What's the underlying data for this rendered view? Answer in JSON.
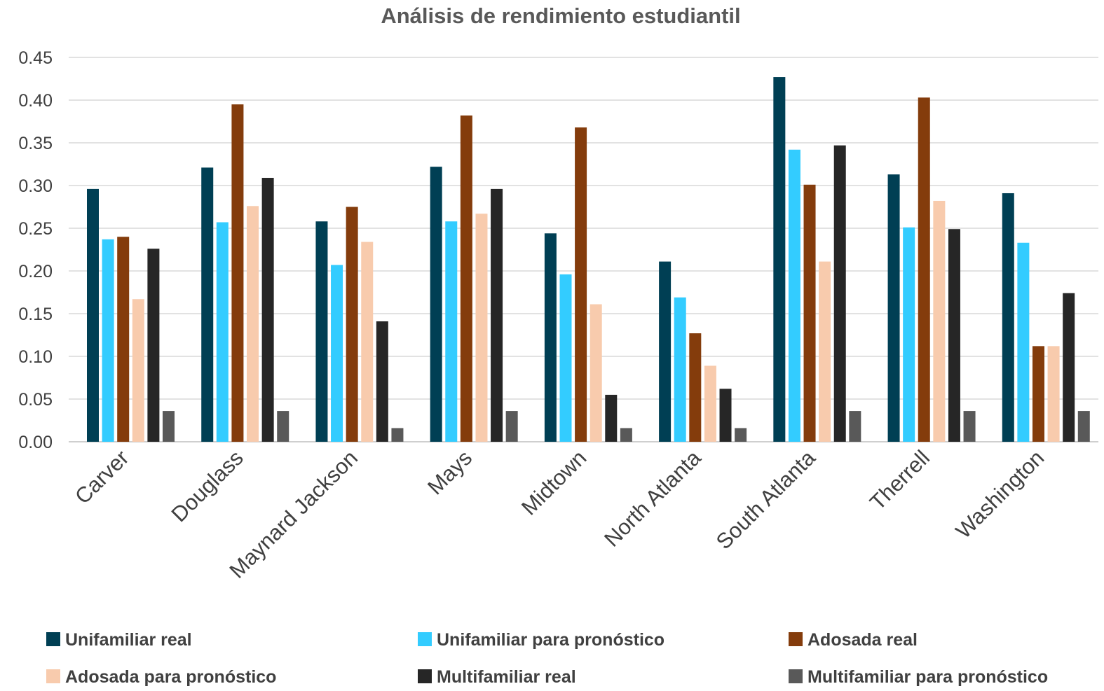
{
  "chart_data": {
    "type": "bar",
    "title": "Análisis de rendimiento estudiantil",
    "xlabel": "",
    "ylabel": "",
    "ylim": [
      0,
      0.45
    ],
    "yticks": [
      "0.00",
      "0.05",
      "0.10",
      "0.15",
      "0.20",
      "0.25",
      "0.30",
      "0.35",
      "0.40",
      "0.45"
    ],
    "grid": true,
    "legend_position": "bottom",
    "categories": [
      "Carver",
      "Douglass",
      "Maynard Jackson",
      "Mays",
      "Midtown",
      "North Atlanta",
      "South Atlanta",
      "Therrell",
      "Washington"
    ],
    "series": [
      {
        "name": "Unifamiliar real",
        "color": "#003F54",
        "values": [
          0.296,
          0.321,
          0.258,
          0.322,
          0.244,
          0.211,
          0.427,
          0.313,
          0.291
        ]
      },
      {
        "name": "Unifamiliar para pronóstico",
        "color": "#33CCFF",
        "values": [
          0.237,
          0.257,
          0.207,
          0.258,
          0.196,
          0.169,
          0.342,
          0.251,
          0.233
        ]
      },
      {
        "name": "Adosada real",
        "color": "#843C0C",
        "values": [
          0.24,
          0.395,
          0.275,
          0.382,
          0.368,
          0.127,
          0.301,
          0.403,
          0.112
        ]
      },
      {
        "name": "Adosada para pronóstico",
        "color": "#F8CBAD",
        "values": [
          0.167,
          0.276,
          0.234,
          0.267,
          0.161,
          0.089,
          0.211,
          0.282,
          0.112
        ]
      },
      {
        "name": "Multifamiliar real",
        "color": "#262626",
        "values": [
          0.226,
          0.309,
          0.141,
          0.296,
          0.055,
          0.062,
          0.347,
          0.249,
          0.174
        ]
      },
      {
        "name": "Multifamiliar para pronóstico",
        "color": "#595959",
        "values": [
          0.036,
          0.036,
          0.016,
          0.036,
          0.016,
          0.016,
          0.036,
          0.036,
          0.036
        ]
      }
    ]
  }
}
